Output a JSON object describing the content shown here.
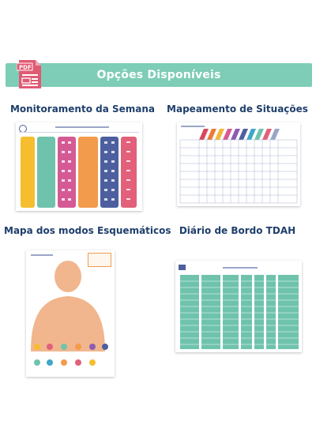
{
  "banner": {
    "title": "Opções Disponíveis"
  },
  "pdf_icon": {
    "label": "PDF",
    "icon": "pdf-document-icon"
  },
  "sections": [
    {
      "title": "Monitoramento da Semana"
    },
    {
      "title": "Mapeamento de Situações"
    },
    {
      "title": "Mapa dos modos Esquemáticos"
    },
    {
      "title": "Diário de Bordo TDAH"
    }
  ],
  "colors": {
    "banner": "#7ecdb6",
    "heading": "#1f3f6b",
    "yellow": "#f6be2f",
    "teal": "#6fc3ad",
    "pink": "#d45a95",
    "orange": "#f29b4c",
    "navy": "#4d5f9e",
    "rose": "#e2607a",
    "skin": "#f1b68d"
  }
}
